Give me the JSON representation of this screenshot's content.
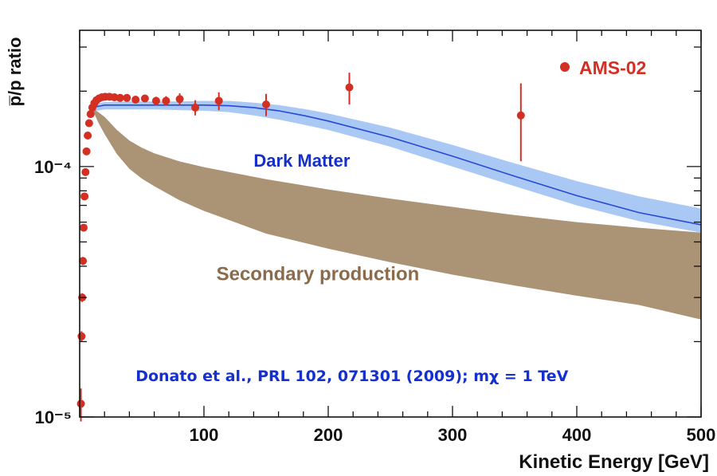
{
  "chart_data": {
    "type": "scatter",
    "title": "",
    "xlabel": "Kinetic Energy [GeV]",
    "ylabel": "p̅/p ratio",
    "xscale": "linear",
    "yscale": "log",
    "xlim": [
      0,
      500
    ],
    "ylim": [
      1e-05,
      0.00035
    ],
    "x_ticks": [
      {
        "value": 100,
        "label": "100"
      },
      {
        "value": 200,
        "label": "200"
      },
      {
        "value": 300,
        "label": "300"
      },
      {
        "value": 400,
        "label": "400"
      },
      {
        "value": 500,
        "label": "500"
      }
    ],
    "y_ticks": [
      {
        "value": 1e-05,
        "label": "10⁻⁵"
      },
      {
        "value": 0.0001,
        "label": "10⁻⁴"
      }
    ],
    "legend": {
      "position": "top-right",
      "entries": [
        {
          "name": "AMS-02",
          "marker": "circle",
          "color": "#d32f23"
        }
      ]
    },
    "series": [
      {
        "name": "AMS-02",
        "kind": "points-with-errorbars",
        "color": "#d32f23",
        "points": [
          {
            "x": 1.0,
            "y": 1.13e-05,
            "err": 1.7e-06
          },
          {
            "x": 1.5,
            "y": 2.1e-05,
            "err": 1e-06
          },
          {
            "x": 2.0,
            "y": 3e-05,
            "err": 1.2e-06
          },
          {
            "x": 2.6,
            "y": 4.2e-05,
            "err": 1.5e-06
          },
          {
            "x": 3.2,
            "y": 5.7e-05,
            "err": 1.8e-06
          },
          {
            "x": 3.9,
            "y": 7.6e-05,
            "err": 2.2e-06
          },
          {
            "x": 4.7,
            "y": 9.5e-05,
            "err": 2.6e-06
          },
          {
            "x": 5.5,
            "y": 0.000115,
            "err": 3e-06
          },
          {
            "x": 6.5,
            "y": 0.000133,
            "err": 3e-06
          },
          {
            "x": 7.6,
            "y": 0.000149,
            "err": 3e-06
          },
          {
            "x": 8.8,
            "y": 0.000162,
            "err": 4e-06
          },
          {
            "x": 10.2,
            "y": 0.000172,
            "err": 4e-06
          },
          {
            "x": 11.8,
            "y": 0.000179,
            "err": 4e-06
          },
          {
            "x": 13.5,
            "y": 0.000184,
            "err": 4e-06
          },
          {
            "x": 15.5,
            "y": 0.000187,
            "err": 4e-06
          },
          {
            "x": 17.8,
            "y": 0.000189,
            "err": 4e-06
          },
          {
            "x": 20.5,
            "y": 0.00019,
            "err": 4e-06
          },
          {
            "x": 24.0,
            "y": 0.00019,
            "err": 5e-06
          },
          {
            "x": 28.0,
            "y": 0.000189,
            "err": 5e-06
          },
          {
            "x": 32.5,
            "y": 0.000188,
            "err": 5e-06
          },
          {
            "x": 38.0,
            "y": 0.000188,
            "err": 5e-06
          },
          {
            "x": 45.0,
            "y": 0.000185,
            "err": 6e-06
          },
          {
            "x": 52.5,
            "y": 0.000187,
            "err": 6e-06
          },
          {
            "x": 61.5,
            "y": 0.000183,
            "err": 7e-06
          },
          {
            "x": 69.5,
            "y": 0.000183,
            "err": 8e-06
          },
          {
            "x": 80.5,
            "y": 0.000186,
            "err": 1e-05
          },
          {
            "x": 93.0,
            "y": 0.000172,
            "err": 1.2e-05
          },
          {
            "x": 112.0,
            "y": 0.000183,
            "err": 1.5e-05
          },
          {
            "x": 150.0,
            "y": 0.000177,
            "err": 1.8e-05
          },
          {
            "x": 217.0,
            "y": 0.000207,
            "err": 3e-05
          },
          {
            "x": 355.0,
            "y": 0.00016,
            "err": 5.5e-05
          }
        ]
      },
      {
        "name": "Dark Matter",
        "kind": "band-with-line",
        "color": "#2848d8",
        "band_color": "#aac8f4",
        "x": [
          10,
          20,
          40,
          60,
          80,
          100,
          120,
          140,
          160,
          180,
          200,
          250,
          300,
          350,
          400,
          450,
          500
        ],
        "y": [
          0.000172,
          0.000176,
          0.000176,
          0.000176,
          0.000176,
          0.000176,
          0.000175,
          0.000172,
          0.000167,
          0.00016,
          0.000152,
          0.000131,
          0.00011,
          9.15e-05,
          7.65e-05,
          6.55e-05,
          5.85e-05
        ],
        "y_low": [
          0.000166,
          0.000169,
          0.000169,
          0.000169,
          0.000168,
          0.000167,
          0.000165,
          0.00016,
          0.000154,
          0.000147,
          0.00014,
          0.00012,
          0.0001,
          8.35e-05,
          7e-05,
          6.05e-05,
          5.45e-05
        ],
        "y_high": [
          0.000177,
          0.000181,
          0.000182,
          0.000182,
          0.000182,
          0.000183,
          0.000183,
          0.00018,
          0.000176,
          0.00017,
          0.000163,
          0.000143,
          0.000122,
          0.000103,
          8.75e-05,
          7.6e-05,
          6.8e-05
        ]
      },
      {
        "name": "Secondary production",
        "kind": "band",
        "color": "#a48a6a",
        "x": [
          10,
          15,
          20,
          30,
          40,
          50,
          60,
          80,
          100,
          150,
          200,
          250,
          300,
          350,
          400,
          450,
          500
        ],
        "y_low": [
          0.00017,
          0.00015,
          0.000135,
          0.000112,
          9.8e-05,
          8.95e-05,
          8.35e-05,
          7.35e-05,
          6.65e-05,
          5.4e-05,
          4.7e-05,
          4.15e-05,
          3.7e-05,
          3.35e-05,
          3.05e-05,
          2.8e-05,
          2.45e-05
        ],
        "y_high": [
          0.000171,
          0.000165,
          0.000158,
          0.00014,
          0.000127,
          0.000119,
          0.000113,
          0.000105,
          9.95e-05,
          8.9e-05,
          8.1e-05,
          7.45e-05,
          6.9e-05,
          6.4e-05,
          6e-05,
          5.7e-05,
          5.45e-05
        ]
      }
    ],
    "annotations": [
      {
        "id": "dark-matter-label",
        "text": "Dark Matter",
        "x": 140,
        "y": 0.0001,
        "color": "#1530c8"
      },
      {
        "id": "secondary-label",
        "text": "Secondary production",
        "x": 110,
        "y": 3.52e-05,
        "color": "#8a6b4c"
      },
      {
        "id": "reference-label",
        "text": "Donato et al., PRL 102, 071301 (2009);  mχ =  1 TeV",
        "x": 45,
        "y": 1.39e-05,
        "color": "#1530d0"
      }
    ]
  }
}
